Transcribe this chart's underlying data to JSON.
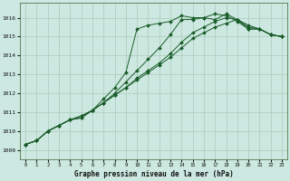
{
  "title": "Graphe pression niveau de la mer (hPa)",
  "background_color": "#cce8e0",
  "grid_color": "#aaccbb",
  "line_color": "#1a5c2a",
  "ylim": [
    1008.5,
    1016.8
  ],
  "xlim": [
    -0.5,
    23.5
  ],
  "yticks": [
    1009,
    1010,
    1011,
    1012,
    1013,
    1014,
    1015,
    1016
  ],
  "xticks": [
    0,
    1,
    2,
    3,
    4,
    5,
    6,
    7,
    8,
    9,
    10,
    11,
    12,
    13,
    14,
    15,
    16,
    17,
    18,
    19,
    20,
    21,
    22,
    23
  ],
  "series": [
    [
      1009.3,
      1009.5,
      1010.0,
      1010.3,
      1010.6,
      1010.7,
      1011.1,
      1011.7,
      1012.3,
      1013.1,
      1015.4,
      1015.6,
      1015.7,
      1015.8,
      1016.1,
      1016.0,
      1016.0,
      1015.9,
      1016.2,
      1015.9,
      1015.4,
      1015.4,
      1015.1,
      1015.0
    ],
    [
      1009.3,
      1009.5,
      1010.0,
      1010.3,
      1010.6,
      1010.7,
      1011.1,
      1011.5,
      1012.0,
      1012.6,
      1013.2,
      1013.8,
      1014.4,
      1015.1,
      1015.9,
      1015.9,
      1016.0,
      1016.2,
      1016.1,
      1015.8,
      1015.4,
      1015.4,
      1015.1,
      1015.0
    ],
    [
      1009.3,
      1009.5,
      1010.0,
      1010.3,
      1010.6,
      1010.8,
      1011.1,
      1011.5,
      1011.9,
      1012.3,
      1012.8,
      1013.2,
      1013.6,
      1014.1,
      1014.7,
      1015.2,
      1015.5,
      1015.8,
      1016.0,
      1015.9,
      1015.5,
      1015.4,
      1015.1,
      1015.0
    ],
    [
      1009.3,
      1009.5,
      1010.0,
      1010.3,
      1010.6,
      1010.8,
      1011.1,
      1011.5,
      1011.9,
      1012.3,
      1012.7,
      1013.1,
      1013.5,
      1013.9,
      1014.4,
      1014.9,
      1015.2,
      1015.5,
      1015.7,
      1015.9,
      1015.6,
      1015.4,
      1015.1,
      1015.0
    ]
  ],
  "marker": "D",
  "markersize": 2.0
}
